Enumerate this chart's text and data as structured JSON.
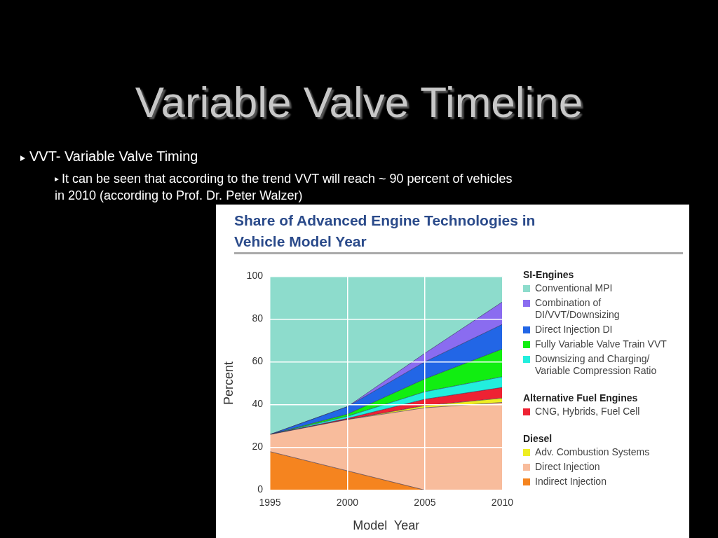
{
  "chart_data": {
    "type": "area",
    "title": "Variable Valve Timeline",
    "subtitle": "Share of Advanced Engine Technologies in Vehicle Model Year",
    "xlabel": "Model  Year",
    "ylabel": "Percent",
    "annotations": [
      "VVT- Variable Valve Timing",
      "It can be seen that according to the trend VVT will reach ~ 90 percent of vehicles in 2010 (according to Prof. Dr. Peter Walzer)",
      "SI-Engines",
      "Alternative Fuel Engines",
      "Diesel"
    ],
    "categories": [
      "1995",
      "2000",
      "2005",
      "2010"
    ],
    "stacked": true,
    "ylim": [
      0,
      100
    ],
    "yticks": [
      0,
      20,
      40,
      60,
      80,
      100
    ],
    "grid": true,
    "legend": "right",
    "marker": "none",
    "series": [
      {
        "name": "Indirect Injection",
        "color": "#f5841f",
        "values": [
          18,
          9,
          0,
          0
        ]
      },
      {
        "name": "Direct Injection",
        "color": "#f8bc9c",
        "values": [
          8,
          24,
          38.5,
          41
        ]
      },
      {
        "name": "Adv. Combustion Systems",
        "color": "#eeee22",
        "values": [
          0,
          0,
          1,
          2
        ]
      },
      {
        "name": "CNG, Hybrids, Fuel Cell",
        "color": "#ee2233",
        "values": [
          0,
          0.5,
          3,
          5
        ]
      },
      {
        "name": "Downsizing and Charging/ Variable Compression Ratio",
        "color": "#22eedd",
        "values": [
          0,
          1,
          3.5,
          5
        ]
      },
      {
        "name": "Fully Variable Valve Train VVT",
        "color": "#11ee11",
        "values": [
          0,
          1,
          6,
          13
        ]
      },
      {
        "name": "Direct Injection DI",
        "color": "#2266e6",
        "values": [
          0,
          3.5,
          8,
          11.5
        ]
      },
      {
        "name": "Combination of DI/VVT/Downsizing",
        "color": "#8a6cf0",
        "values": [
          0,
          0,
          4,
          10.5
        ]
      },
      {
        "name": "Conventional MPI",
        "color": "#8ddccc",
        "values": [
          74,
          61,
          36,
          12
        ]
      }
    ]
  }
}
